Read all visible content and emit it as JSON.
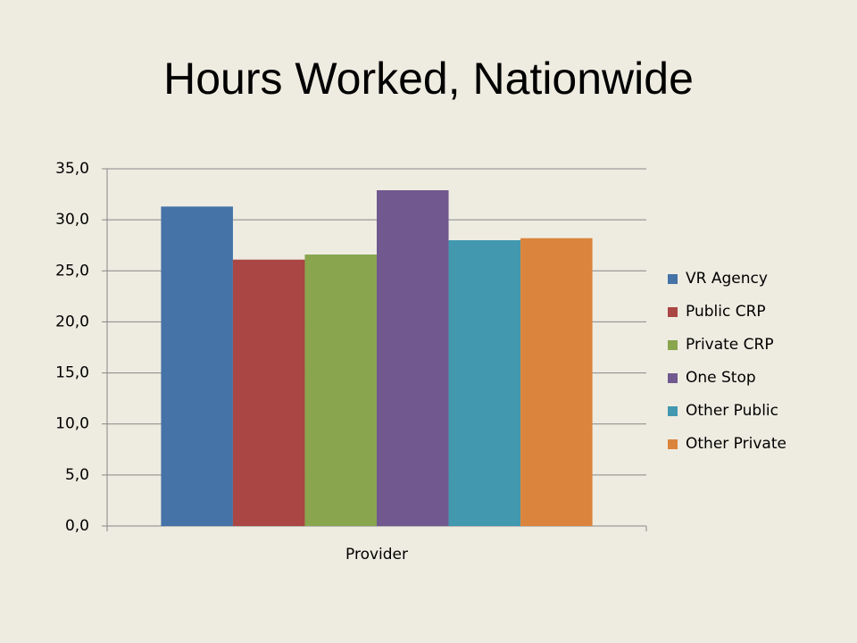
{
  "chart_data": {
    "type": "bar",
    "title": "Hours Worked, Nationwide",
    "categories": [
      "Provider"
    ],
    "series": [
      {
        "name": "VR Agency",
        "color": "#4572a7",
        "values": [
          31.3
        ]
      },
      {
        "name": "Public CRP",
        "color": "#aa4643",
        "values": [
          26.1
        ]
      },
      {
        "name": "Private CRP",
        "color": "#89a54e",
        "values": [
          26.6
        ]
      },
      {
        "name": "One Stop",
        "color": "#71588f",
        "values": [
          32.9
        ]
      },
      {
        "name": "Other Public",
        "color": "#4198af",
        "values": [
          28.0
        ]
      },
      {
        "name": "Other Private",
        "color": "#db843d",
        "values": [
          28.2
        ]
      }
    ],
    "ylim": [
      0,
      35
    ],
    "yticks": [
      {
        "value": 0,
        "label": "0,0"
      },
      {
        "value": 5,
        "label": "5,0"
      },
      {
        "value": 10,
        "label": "10,0"
      },
      {
        "value": 15,
        "label": "15,0"
      },
      {
        "value": 20,
        "label": "20,0"
      },
      {
        "value": 25,
        "label": "25,0"
      },
      {
        "value": 30,
        "label": "30,0"
      },
      {
        "value": 35,
        "label": "35,0"
      }
    ],
    "grid": true,
    "legend": "right"
  }
}
